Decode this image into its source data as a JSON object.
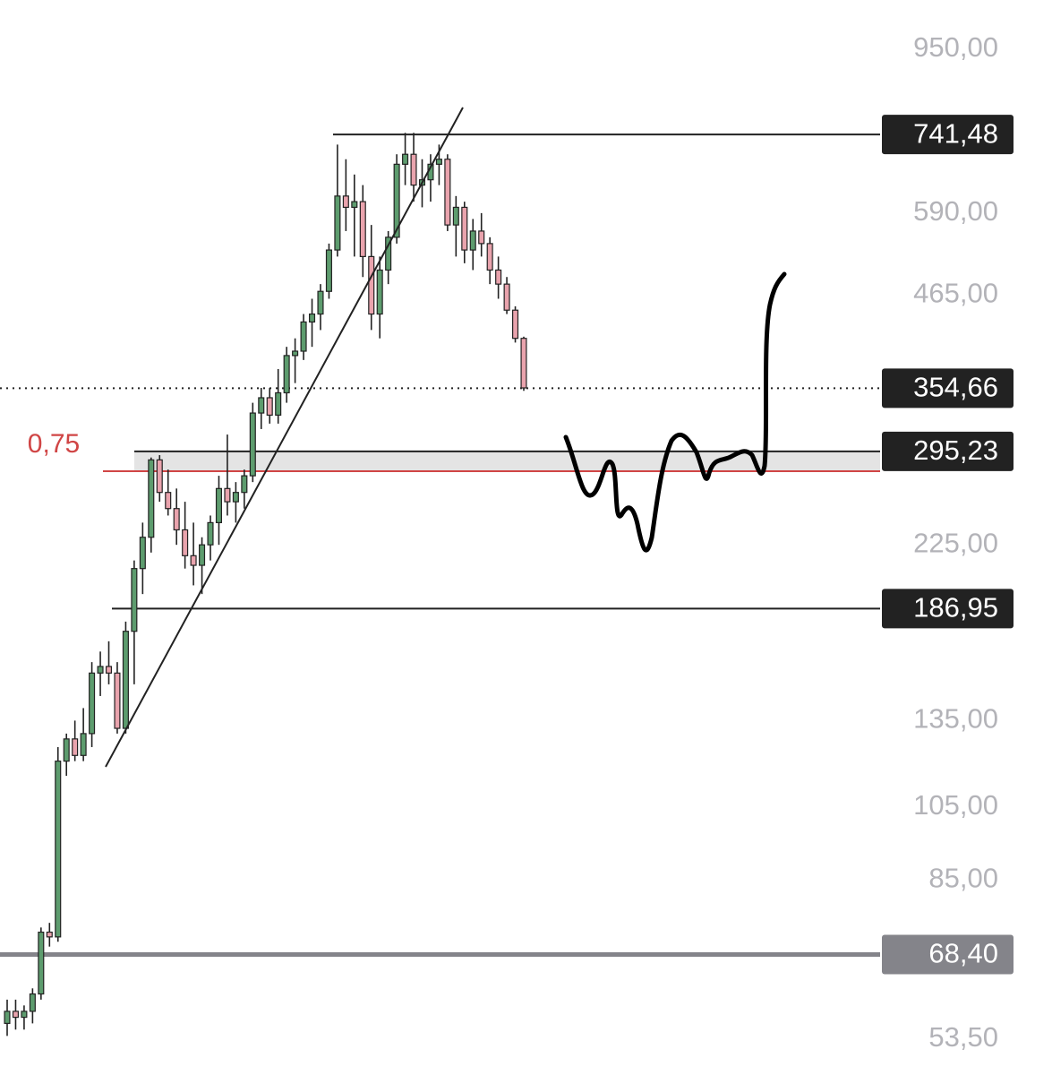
{
  "chart_data": {
    "type": "candlestick",
    "log_scale": true,
    "ylim": [
      48.2,
      1096
    ],
    "yticks": [
      {
        "value": 950,
        "label": "950,00"
      },
      {
        "value": 590,
        "label": "590,00"
      },
      {
        "value": 465,
        "label": "465,00"
      },
      {
        "value": 225,
        "label": "225,00"
      },
      {
        "value": 135,
        "label": "135,00"
      },
      {
        "value": 105,
        "label": "105,00"
      },
      {
        "value": 85,
        "label": "85,00"
      },
      {
        "value": 53.5,
        "label": "53,50"
      }
    ],
    "up_color": "#5d9c6e",
    "down_color": "#e9a3ad",
    "candles": [
      [
        56,
        60,
        54,
        58
      ],
      [
        58,
        60,
        55,
        57
      ],
      [
        57,
        59,
        55,
        58
      ],
      [
        58,
        62,
        56,
        61
      ],
      [
        61,
        74,
        60,
        73
      ],
      [
        73,
        75,
        70,
        72
      ],
      [
        72,
        125,
        71,
        120
      ],
      [
        120,
        130,
        115,
        128
      ],
      [
        128,
        135,
        120,
        122
      ],
      [
        122,
        140,
        120,
        130
      ],
      [
        130,
        160,
        125,
        155
      ],
      [
        155,
        165,
        145,
        158
      ],
      [
        158,
        170,
        150,
        155
      ],
      [
        155,
        160,
        130,
        132
      ],
      [
        132,
        180,
        130,
        175
      ],
      [
        175,
        215,
        150,
        210
      ],
      [
        210,
        240,
        195,
        230
      ],
      [
        230,
        290,
        220,
        288
      ],
      [
        288,
        292,
        255,
        262
      ],
      [
        262,
        280,
        245,
        250
      ],
      [
        250,
        265,
        225,
        235
      ],
      [
        235,
        255,
        210,
        218
      ],
      [
        218,
        240,
        200,
        212
      ],
      [
        212,
        230,
        195,
        225
      ],
      [
        225,
        245,
        215,
        240
      ],
      [
        240,
        275,
        225,
        265
      ],
      [
        265,
        310,
        245,
        255
      ],
      [
        255,
        270,
        240,
        262
      ],
      [
        262,
        280,
        250,
        275
      ],
      [
        275,
        340,
        270,
        330
      ],
      [
        330,
        355,
        315,
        345
      ],
      [
        345,
        355,
        320,
        328
      ],
      [
        328,
        375,
        320,
        350
      ],
      [
        350,
        400,
        340,
        390
      ],
      [
        390,
        410,
        360,
        395
      ],
      [
        395,
        440,
        385,
        430
      ],
      [
        430,
        460,
        400,
        440
      ],
      [
        440,
        480,
        420,
        470
      ],
      [
        470,
        540,
        460,
        530
      ],
      [
        530,
        720,
        520,
        620
      ],
      [
        620,
        690,
        560,
        600
      ],
      [
        600,
        660,
        520,
        610
      ],
      [
        610,
        640,
        490,
        520
      ],
      [
        520,
        570,
        420,
        440
      ],
      [
        440,
        520,
        410,
        500
      ],
      [
        500,
        560,
        480,
        550
      ],
      [
        550,
        700,
        540,
        680
      ],
      [
        680,
        745,
        640,
        700
      ],
      [
        700,
        745,
        610,
        640
      ],
      [
        640,
        690,
        600,
        650
      ],
      [
        650,
        700,
        610,
        680
      ],
      [
        680,
        720,
        640,
        690
      ],
      [
        690,
        700,
        560,
        570
      ],
      [
        570,
        620,
        520,
        600
      ],
      [
        600,
        610,
        510,
        530
      ],
      [
        530,
        580,
        500,
        560
      ],
      [
        560,
        590,
        520,
        540
      ],
      [
        540,
        550,
        480,
        500
      ],
      [
        500,
        520,
        460,
        480
      ],
      [
        480,
        490,
        440,
        445
      ],
      [
        445,
        450,
        405,
        410
      ],
      [
        410,
        412,
        352,
        355
      ]
    ],
    "levels": [
      {
        "value": 741.48,
        "label": "741,48",
        "style": "solid",
        "color": "#222222"
      },
      {
        "value": 354.66,
        "label": "354,66",
        "style": "dotted",
        "color": "#222222"
      },
      {
        "value": 295.23,
        "label": "295,23",
        "style": "solid",
        "color": "#222222"
      },
      {
        "value": 186.95,
        "label": "186,95",
        "style": "solid",
        "color": "#222222"
      },
      {
        "value": 68.4,
        "label": "68,40",
        "style": "thick",
        "color": "#84848a"
      }
    ],
    "fib": {
      "value": 278.7,
      "label": "0,75",
      "color": "#d04545"
    },
    "zone_color": "#e4e4e4"
  }
}
